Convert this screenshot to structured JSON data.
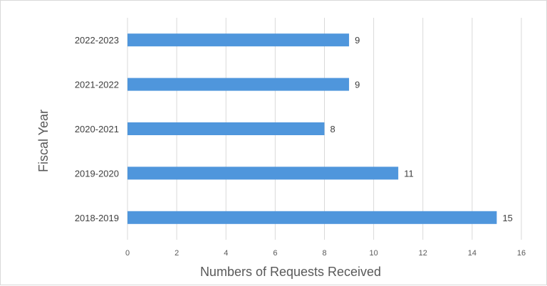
{
  "chart_data": {
    "type": "bar",
    "orientation": "horizontal",
    "categories": [
      "2022-2023",
      "2021-2022",
      "2020-2021",
      "2019-2020",
      "2018-2019"
    ],
    "values": [
      9,
      9,
      8,
      11,
      15
    ],
    "xlabel": "Numbers of Requests Received",
    "ylabel": "Fiscal Year",
    "xlim": [
      0,
      16
    ],
    "xticks": [
      "0",
      "2",
      "4",
      "6",
      "8",
      "10",
      "12",
      "14",
      "16"
    ],
    "grid": "vertical",
    "data_labels": true,
    "bar_color": "#4f96dc",
    "grid_color": "#d9d9d9"
  }
}
